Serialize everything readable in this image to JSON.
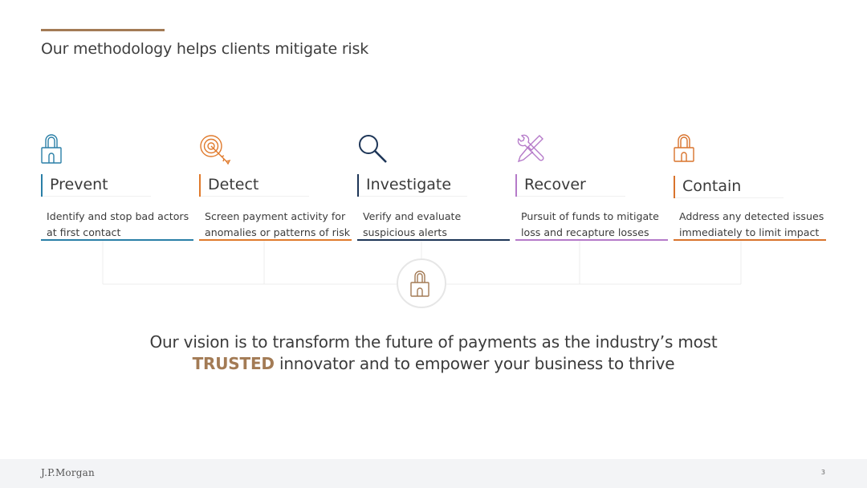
{
  "header": {
    "title": "Our methodology helps clients mitigate risk"
  },
  "steps": [
    {
      "label": "Prevent",
      "icon": "padlock-icon",
      "color": "#2a7fa7",
      "line1": "Identify and stop bad actors",
      "line2": "at first contact"
    },
    {
      "label": "Detect",
      "icon": "target-icon",
      "color": "#e07a2c",
      "line1": "Screen payment activity for",
      "line2": "anomalies or patterns of risk"
    },
    {
      "label": "Investigate",
      "icon": "magnifier-icon",
      "color": "#1d3557",
      "line1": "Verify and evaluate",
      "line2": "suspicious alerts"
    },
    {
      "label": "Recover",
      "icon": "tools-icon",
      "color": "#b57ac9",
      "line1": "Pursuit of funds to mitigate",
      "line2": "loss and recapture losses"
    },
    {
      "label": "Contain",
      "icon": "padlock-icon",
      "color": "#d9732c",
      "line1": "Address any detected issues",
      "line2": "immediately to limit impact"
    }
  ],
  "vision": {
    "line1": "Our vision is to transform the future of payments as the industry’s most",
    "emphasis": "TRUSTED",
    "line2_rest": " innovator and to empower your business to thrive"
  },
  "footer": {
    "logo": "J.P.Morgan",
    "page_number": "3"
  },
  "colors": {
    "accent": "#a37b55",
    "footer_bg": "#f3f4f6"
  }
}
